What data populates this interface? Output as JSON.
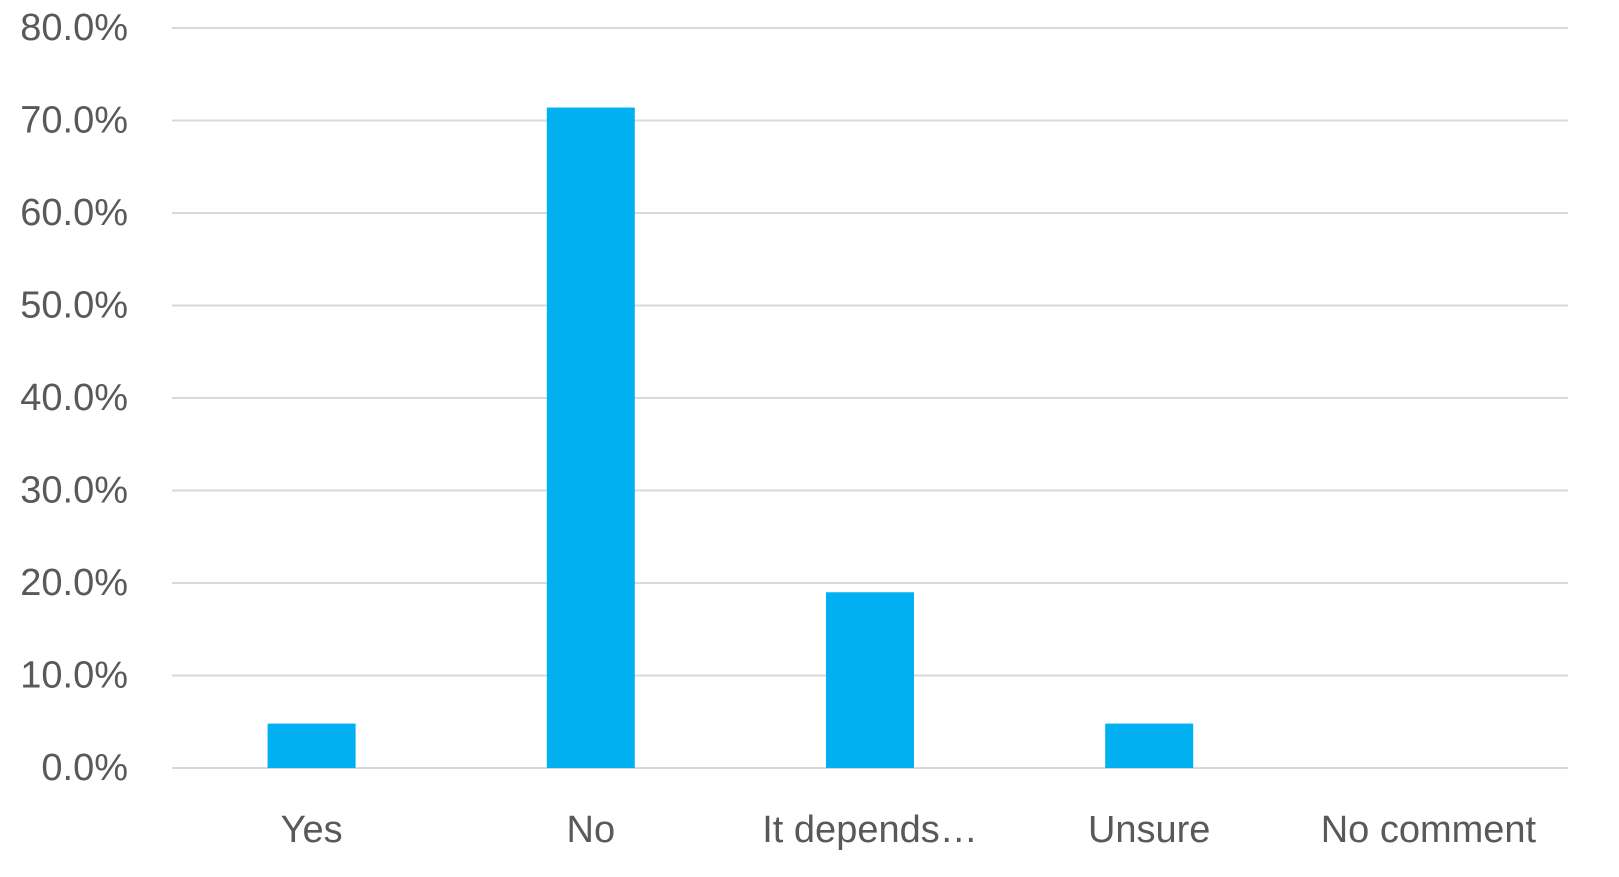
{
  "chart_data": {
    "type": "bar",
    "title": "",
    "xlabel": "",
    "ylabel": "",
    "categories": [
      "Yes",
      "No",
      "It depends…",
      "Unsure",
      "No comment"
    ],
    "values": [
      4.8,
      71.4,
      19.0,
      4.8,
      0.0
    ],
    "ylim": [
      0,
      80
    ],
    "y_ticks": [
      0,
      10,
      20,
      30,
      40,
      50,
      60,
      70,
      80
    ],
    "y_tick_labels": [
      "0.0%",
      "10.0%",
      "20.0%",
      "30.0%",
      "40.0%",
      "50.0%",
      "60.0%",
      "70.0%",
      "80.0%"
    ],
    "grid": true,
    "legend": "none",
    "bar_color": "#00b0f0",
    "gridline_color": "#d9d9d9",
    "label_color": "#595959"
  }
}
